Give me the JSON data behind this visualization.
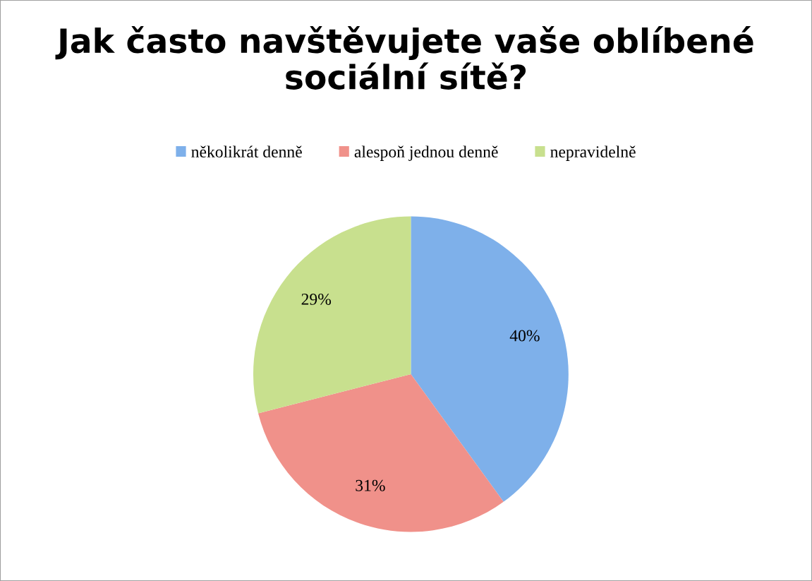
{
  "chart_data": {
    "type": "pie",
    "title": "Jak často navštěvujete vaše oblíbené sociální sítě?",
    "categories": [
      "několikrát denně",
      "alespoň jednou denně",
      "nepravidelně"
    ],
    "values": [
      40,
      31,
      29
    ],
    "value_labels": [
      "40%",
      "31%",
      "29%"
    ],
    "colors": [
      "#7eb0ea",
      "#f0918a",
      "#c8e08e"
    ],
    "legend": "top"
  }
}
